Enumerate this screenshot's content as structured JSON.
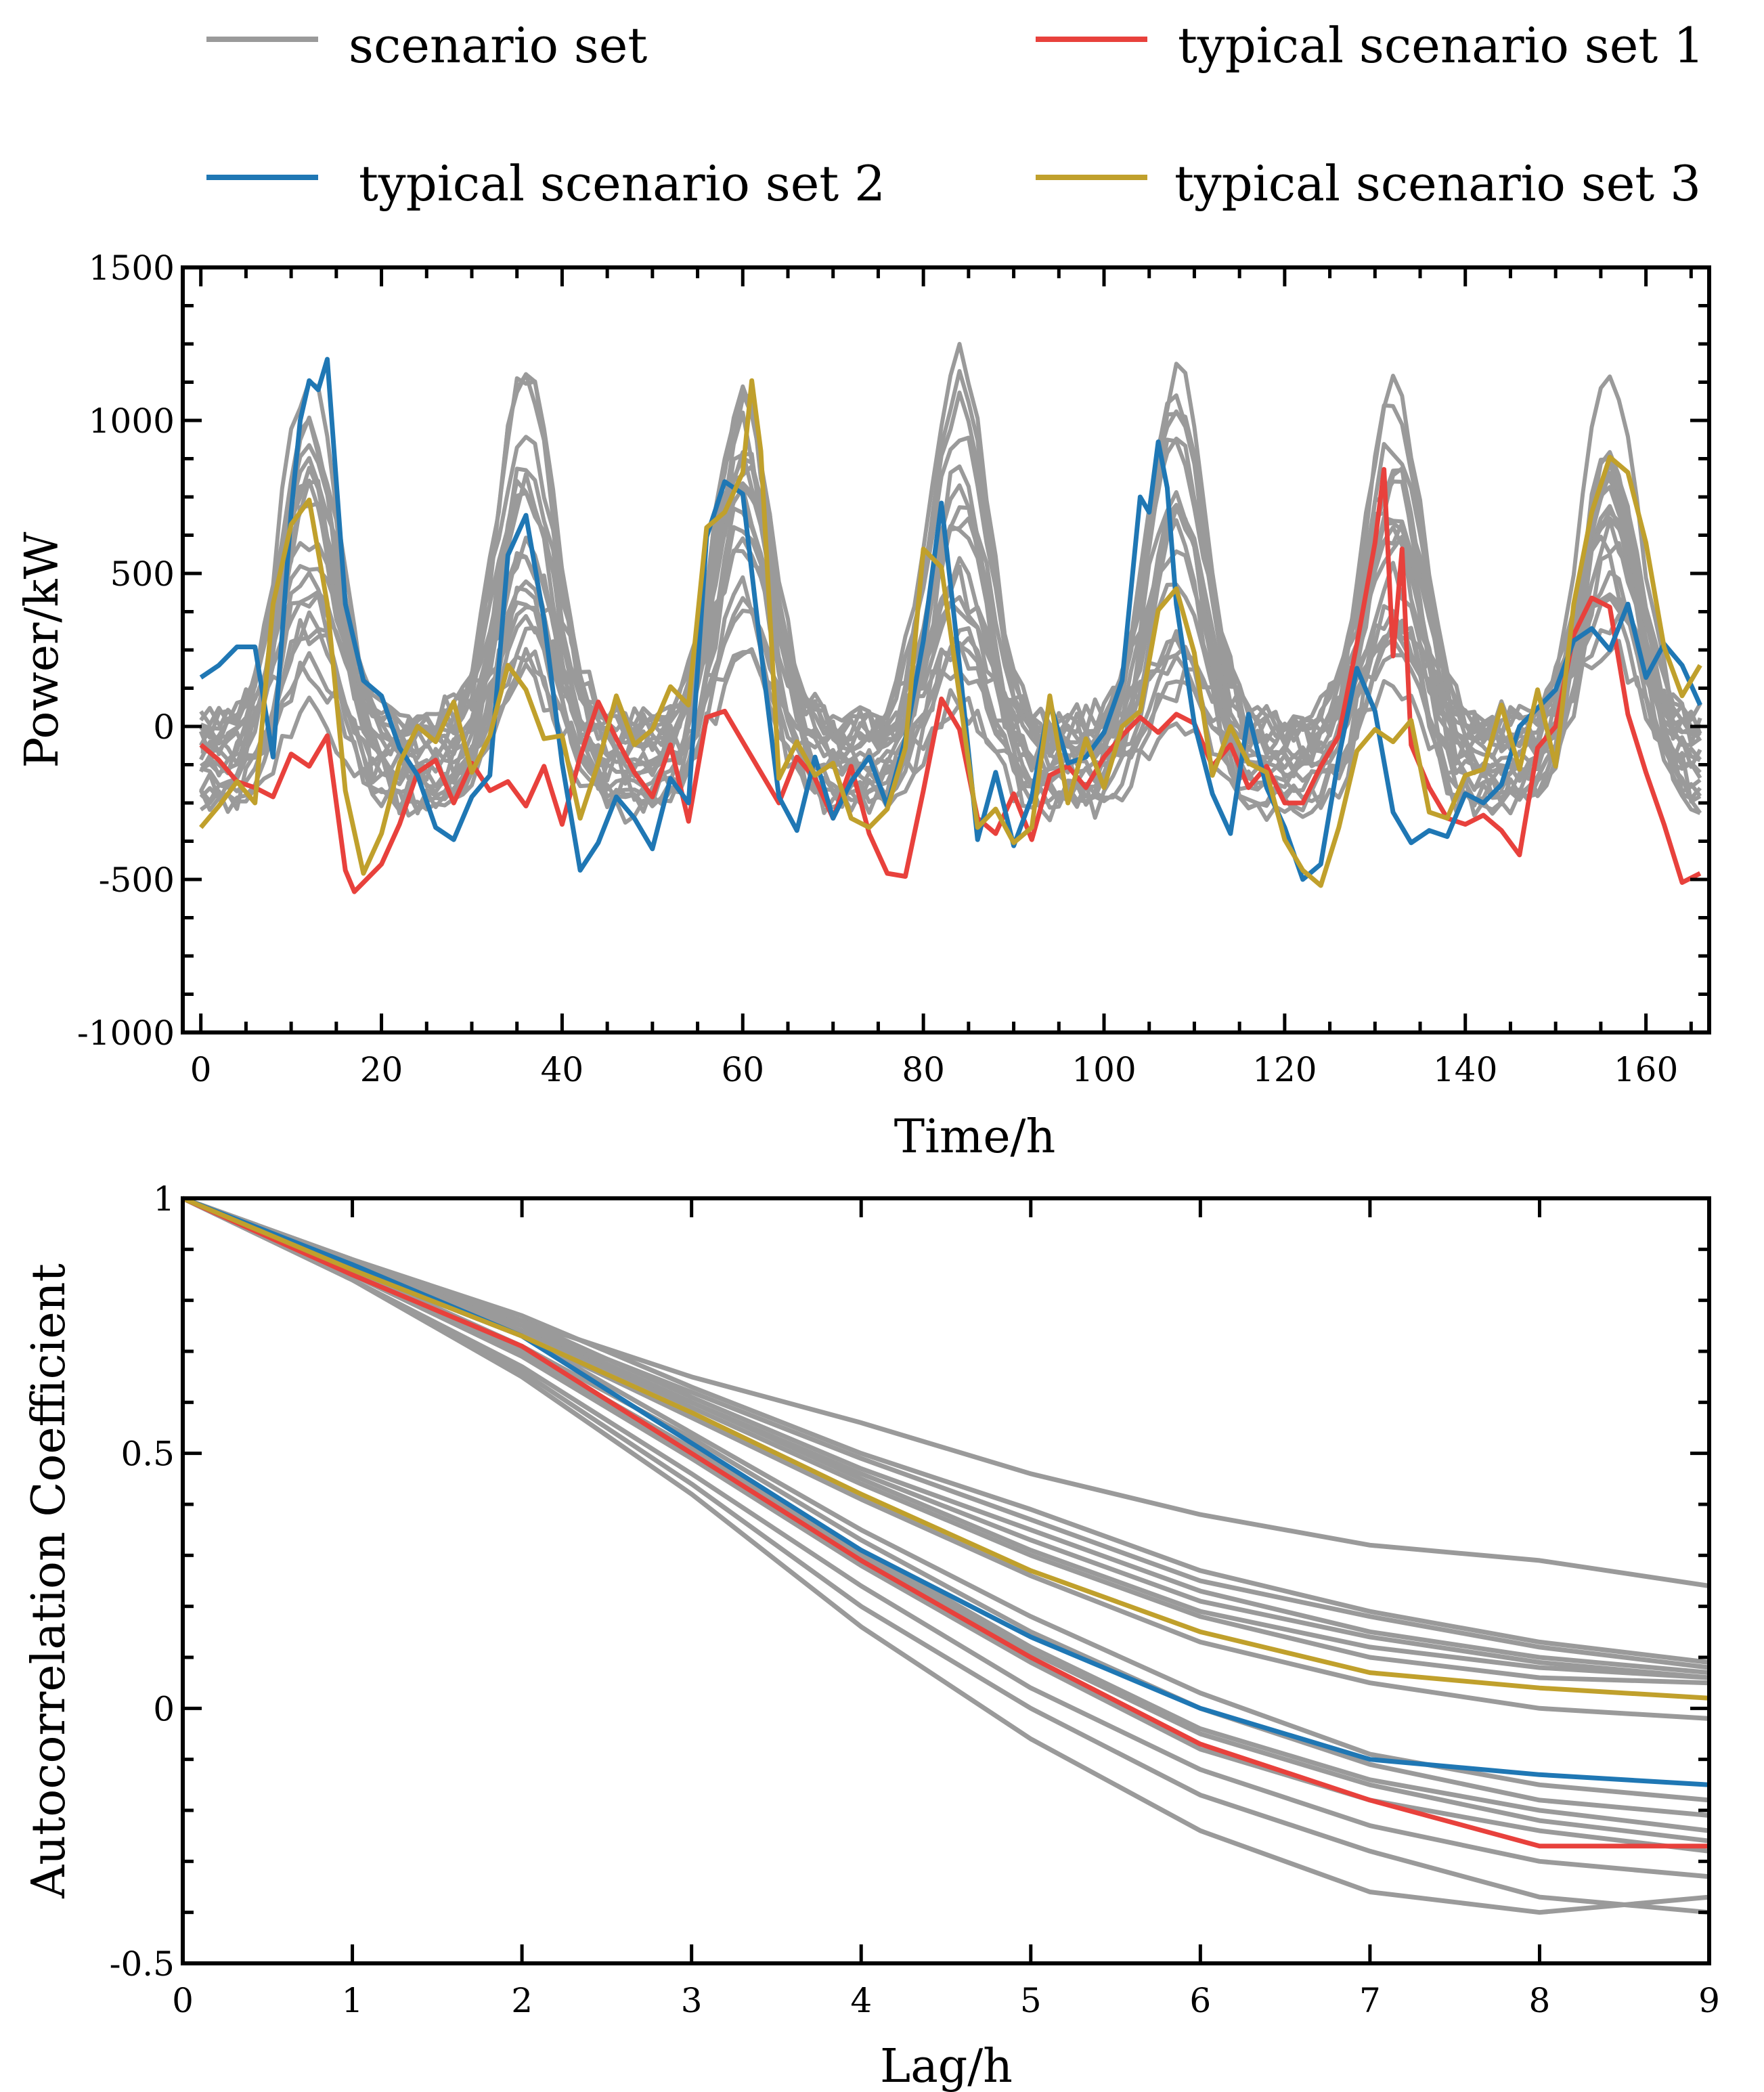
{
  "colors": {
    "scenario": "#9a9a9a",
    "typical1": "#e8413c",
    "typical2": "#1f77b4",
    "typical3": "#c0a02c",
    "axis": "#000000"
  },
  "legend": [
    {
      "label": "scenario set",
      "color_key": "scenario"
    },
    {
      "label": "typical scenario set 1",
      "color_key": "typical1"
    },
    {
      "label": "typical scenario set 2",
      "color_key": "typical2"
    },
    {
      "label": "typical scenario set 3",
      "color_key": "typical3"
    }
  ],
  "chart_data": [
    {
      "type": "line",
      "title": "",
      "xlabel": "Time/h",
      "ylabel": "Power/kW",
      "xlim": [
        -2,
        167
      ],
      "ylim": [
        -1000,
        1500
      ],
      "xticks": [
        0,
        20,
        40,
        60,
        80,
        100,
        120,
        140,
        160
      ],
      "yticks": [
        -1000,
        -500,
        0,
        500,
        1000,
        1500
      ],
      "xtick_labels": [
        "0",
        "20",
        "40",
        "60",
        "80",
        "100",
        "120",
        "140",
        "160"
      ],
      "ytick_labels": [
        "-1000",
        "-500",
        "0",
        "500",
        "1000",
        "1500"
      ],
      "x_minor_step": 5,
      "y_minor_step": 125,
      "series_description": "approximate hourly power profiles over 168 hours; 20 gray scenario curves plus 3 highlighted typical scenarios",
      "series": [
        {
          "name": "typical scenario set 1",
          "color_key": "typical1",
          "x": [
            0,
            2,
            4,
            6,
            8,
            10,
            12,
            14,
            16,
            17,
            18,
            20,
            22,
            24,
            26,
            28,
            30,
            32,
            34,
            36,
            38,
            40,
            42,
            44,
            46,
            48,
            50,
            52,
            54,
            56,
            58,
            60,
            62,
            64,
            66,
            68,
            70,
            72,
            74,
            76,
            78,
            80,
            82,
            84,
            86,
            88,
            90,
            92,
            94,
            96,
            98,
            100,
            102,
            104,
            106,
            108,
            110,
            112,
            114,
            116,
            118,
            120,
            122,
            124,
            126,
            128,
            130,
            131,
            132,
            133,
            134,
            136,
            138,
            140,
            142,
            144,
            146,
            148,
            150,
            152,
            154,
            156,
            158,
            160,
            162,
            164,
            166
          ],
          "y": [
            -60,
            -110,
            -180,
            -200,
            -230,
            -90,
            -130,
            -30,
            -470,
            -540,
            -510,
            -450,
            -320,
            -150,
            -110,
            -250,
            -120,
            -210,
            -180,
            -260,
            -130,
            -320,
            -100,
            80,
            -40,
            -150,
            -230,
            -60,
            -310,
            30,
            50,
            -50,
            -150,
            -250,
            -100,
            -170,
            -300,
            -130,
            -350,
            -480,
            -490,
            -210,
            90,
            -10,
            -300,
            -350,
            -220,
            -370,
            -160,
            -130,
            -200,
            -100,
            -30,
            30,
            -20,
            40,
            10,
            -130,
            -60,
            -200,
            -130,
            -250,
            -250,
            -130,
            -30,
            270,
            600,
            840,
            230,
            580,
            -60,
            -200,
            -300,
            -320,
            -290,
            -340,
            -420,
            -70,
            0,
            300,
            420,
            390,
            40,
            -150,
            -320,
            -510,
            -480
          ]
        },
        {
          "name": "typical scenario set 2",
          "color_key": "typical2",
          "x": [
            0,
            2,
            4,
            6,
            8,
            10,
            11,
            12,
            13,
            14,
            16,
            18,
            20,
            22,
            24,
            26,
            28,
            30,
            32,
            34,
            36,
            38,
            40,
            42,
            44,
            46,
            48,
            50,
            52,
            54,
            56,
            58,
            60,
            62,
            64,
            66,
            68,
            70,
            72,
            74,
            76,
            78,
            80,
            82,
            84,
            86,
            88,
            90,
            92,
            94,
            96,
            98,
            100,
            102,
            104,
            105,
            106,
            107,
            108,
            110,
            112,
            114,
            116,
            118,
            120,
            122,
            124,
            126,
            128,
            130,
            132,
            134,
            136,
            138,
            140,
            142,
            144,
            146,
            148,
            150,
            152,
            154,
            156,
            158,
            160,
            162,
            164,
            166
          ],
          "y": [
            160,
            200,
            260,
            260,
            -100,
            700,
            1000,
            1130,
            1100,
            1200,
            400,
            150,
            100,
            -70,
            -160,
            -330,
            -370,
            -230,
            -160,
            560,
            690,
            350,
            -120,
            -470,
            -380,
            -230,
            -300,
            -400,
            -170,
            -250,
            620,
            800,
            760,
            250,
            -230,
            -340,
            -100,
            -300,
            -180,
            -100,
            -260,
            -40,
            280,
            730,
            200,
            -370,
            -150,
            -390,
            -230,
            80,
            -120,
            -100,
            -20,
            150,
            750,
            700,
            930,
            780,
            400,
            10,
            -220,
            -350,
            40,
            -200,
            -330,
            -500,
            -450,
            -100,
            190,
            50,
            -280,
            -380,
            -340,
            -360,
            -220,
            -250,
            -190,
            0,
            60,
            120,
            280,
            320,
            250,
            400,
            160,
            270,
            200,
            70
          ]
        },
        {
          "name": "typical scenario set 3",
          "color_key": "typical3",
          "x": [
            0,
            2,
            4,
            6,
            8,
            10,
            12,
            14,
            16,
            18,
            20,
            22,
            24,
            26,
            28,
            30,
            32,
            34,
            36,
            38,
            40,
            42,
            44,
            46,
            48,
            50,
            52,
            54,
            56,
            58,
            60,
            61,
            62,
            64,
            66,
            68,
            70,
            72,
            74,
            76,
            78,
            80,
            82,
            84,
            86,
            88,
            90,
            92,
            94,
            96,
            98,
            100,
            102,
            104,
            106,
            108,
            110,
            112,
            114,
            116,
            118,
            120,
            122,
            124,
            126,
            128,
            130,
            132,
            134,
            136,
            138,
            140,
            142,
            144,
            146,
            148,
            150,
            152,
            154,
            156,
            158,
            160,
            162,
            164,
            166
          ],
          "y": [
            -330,
            -260,
            -180,
            -250,
            400,
            660,
            740,
            400,
            -210,
            -480,
            -350,
            -120,
            0,
            -50,
            80,
            -150,
            -30,
            200,
            120,
            -40,
            -30,
            -300,
            -120,
            100,
            -60,
            -10,
            130,
            70,
            650,
            700,
            830,
            1130,
            900,
            -170,
            -50,
            -160,
            -120,
            -300,
            -330,
            -270,
            -70,
            580,
            520,
            100,
            -330,
            -270,
            -380,
            -330,
            100,
            -250,
            -40,
            -200,
            0,
            50,
            380,
            450,
            240,
            -160,
            0,
            -120,
            -150,
            -370,
            -470,
            -520,
            -330,
            -80,
            -10,
            -50,
            20,
            -280,
            -300,
            -160,
            -140,
            70,
            -140,
            120,
            -130,
            400,
            700,
            880,
            830,
            600,
            260,
            100,
            200
          ]
        }
      ],
      "scenario_count": 20
    },
    {
      "type": "line",
      "title": "",
      "xlabel": "Lag/h",
      "ylabel": "Autocorrelation Coefficient",
      "xlim": [
        0,
        9
      ],
      "ylim": [
        -0.5,
        1
      ],
      "xticks": [
        0,
        1,
        2,
        3,
        4,
        5,
        6,
        7,
        8,
        9
      ],
      "yticks": [
        -0.5,
        0,
        0.5,
        1
      ],
      "xtick_labels": [
        "0",
        "1",
        "2",
        "3",
        "4",
        "5",
        "6",
        "7",
        "8",
        "9"
      ],
      "ytick_labels": [
        "-0.5",
        "0",
        "0.5",
        "1"
      ],
      "y_minor_step": 0.1,
      "x": [
        0,
        1,
        2,
        3,
        4,
        5,
        6,
        7,
        8,
        9
      ],
      "series": [
        {
          "name": "typical scenario set 1",
          "color_key": "typical1",
          "values": [
            1.0,
            0.85,
            0.71,
            0.5,
            0.29,
            0.1,
            -0.07,
            -0.18,
            -0.27,
            -0.27
          ]
        },
        {
          "name": "typical scenario set 2",
          "color_key": "typical2",
          "values": [
            1.0,
            0.87,
            0.73,
            0.52,
            0.31,
            0.14,
            0.0,
            -0.1,
            -0.13,
            -0.15
          ]
        },
        {
          "name": "typical scenario set 3",
          "color_key": "typical3",
          "values": [
            1.0,
            0.86,
            0.73,
            0.58,
            0.42,
            0.27,
            0.15,
            0.07,
            0.04,
            0.02
          ]
        },
        {
          "name": "scenario set",
          "color_key": "scenario",
          "values": [
            1.0,
            0.87,
            0.76,
            0.65,
            0.56,
            0.46,
            0.38,
            0.32,
            0.29,
            0.24
          ]
        },
        {
          "name": "scenario set",
          "color_key": "scenario",
          "values": [
            1.0,
            0.88,
            0.77,
            0.63,
            0.5,
            0.39,
            0.27,
            0.19,
            0.13,
            0.09
          ]
        },
        {
          "name": "scenario set",
          "color_key": "scenario",
          "values": [
            1.0,
            0.87,
            0.75,
            0.62,
            0.49,
            0.37,
            0.25,
            0.18,
            0.12,
            0.08
          ]
        },
        {
          "name": "scenario set",
          "color_key": "scenario",
          "values": [
            1.0,
            0.88,
            0.76,
            0.61,
            0.47,
            0.35,
            0.23,
            0.15,
            0.1,
            0.07
          ]
        },
        {
          "name": "scenario set",
          "color_key": "scenario",
          "values": [
            1.0,
            0.86,
            0.74,
            0.6,
            0.46,
            0.33,
            0.21,
            0.14,
            0.09,
            0.06
          ]
        },
        {
          "name": "scenario set",
          "color_key": "scenario",
          "values": [
            1.0,
            0.87,
            0.75,
            0.6,
            0.45,
            0.31,
            0.19,
            0.12,
            0.08,
            0.06
          ]
        },
        {
          "name": "scenario set",
          "color_key": "scenario",
          "values": [
            1.0,
            0.87,
            0.74,
            0.59,
            0.44,
            0.3,
            0.18,
            0.1,
            0.06,
            0.05
          ]
        },
        {
          "name": "scenario set",
          "color_key": "scenario",
          "values": [
            1.0,
            0.86,
            0.73,
            0.57,
            0.41,
            0.26,
            0.13,
            0.05,
            0.0,
            -0.02
          ]
        },
        {
          "name": "scenario set",
          "color_key": "scenario",
          "values": [
            1.0,
            0.86,
            0.73,
            0.54,
            0.35,
            0.18,
            0.03,
            -0.09,
            -0.15,
            -0.18
          ]
        },
        {
          "name": "scenario set",
          "color_key": "scenario",
          "values": [
            1.0,
            0.86,
            0.71,
            0.53,
            0.33,
            0.15,
            0.0,
            -0.11,
            -0.18,
            -0.21
          ]
        },
        {
          "name": "scenario set",
          "color_key": "scenario",
          "values": [
            1.0,
            0.85,
            0.7,
            0.51,
            0.31,
            0.12,
            -0.04,
            -0.14,
            -0.2,
            -0.24
          ]
        },
        {
          "name": "scenario set",
          "color_key": "scenario",
          "values": [
            1.0,
            0.85,
            0.7,
            0.5,
            0.3,
            0.11,
            -0.05,
            -0.15,
            -0.22,
            -0.26
          ]
        },
        {
          "name": "scenario set",
          "color_key": "scenario",
          "values": [
            1.0,
            0.85,
            0.69,
            0.49,
            0.28,
            0.09,
            -0.08,
            -0.18,
            -0.24,
            -0.28
          ]
        },
        {
          "name": "scenario set",
          "color_key": "scenario",
          "values": [
            1.0,
            0.84,
            0.67,
            0.46,
            0.24,
            0.04,
            -0.12,
            -0.23,
            -0.3,
            -0.33
          ]
        },
        {
          "name": "scenario set",
          "color_key": "scenario",
          "values": [
            1.0,
            0.84,
            0.66,
            0.44,
            0.2,
            0.0,
            -0.17,
            -0.28,
            -0.37,
            -0.4
          ]
        },
        {
          "name": "scenario set",
          "color_key": "scenario",
          "values": [
            1.0,
            0.84,
            0.65,
            0.42,
            0.16,
            -0.06,
            -0.24,
            -0.36,
            -0.4,
            -0.37
          ]
        }
      ]
    }
  ]
}
